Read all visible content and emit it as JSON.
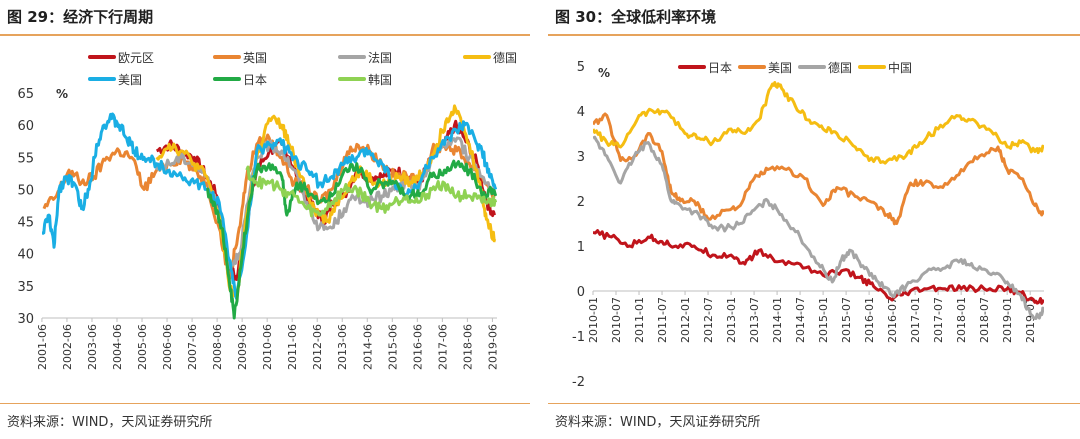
{
  "panels": [
    {
      "title": "图 29：经济下行周期",
      "source": "资料来源：WIND，天风证券研究所"
    },
    {
      "title": "图 30：全球低利率环境",
      "source": "资料来源：WIND，天风证券研究所"
    }
  ],
  "chart_data": [
    {
      "type": "line",
      "unit_label": "%",
      "ylim": [
        30,
        65
      ],
      "yticks": [
        30,
        35,
        40,
        45,
        50,
        55,
        60,
        65
      ],
      "xticks": [
        "2001-06",
        "2002-06",
        "2003-06",
        "2004-06",
        "2005-06",
        "2006-06",
        "2007-06",
        "2008-06",
        "2009-06",
        "2010-06",
        "2011-06",
        "2012-06",
        "2013-06",
        "2014-06",
        "2015-06",
        "2016-06",
        "2017-06",
        "2018-06",
        "2019-06"
      ],
      "xlim": [
        2001.42,
        2019.6
      ],
      "grid": false,
      "legend_position": "top",
      "series": [
        {
          "name": "欧元区",
          "color": "#c0141b",
          "x": [
            2006.0,
            2006.5,
            2007.0,
            2007.5,
            2008.0,
            2008.4,
            2008.9,
            2009.2,
            2009.6,
            2010.0,
            2010.5,
            2011.0,
            2011.3,
            2011.8,
            2012.3,
            2012.7,
            2013.0,
            2013.5,
            2014.0,
            2014.5,
            2015.0,
            2015.5,
            2016.0,
            2016.5,
            2017.0,
            2017.5,
            2017.9,
            2018.3,
            2018.8,
            2019.2,
            2019.5
          ],
          "y": [
            56,
            57,
            56,
            55,
            52,
            49,
            38,
            36,
            45,
            53,
            56,
            57,
            55,
            50,
            47,
            45,
            48,
            49,
            53,
            52,
            52,
            53,
            52,
            51,
            55,
            57,
            60,
            58,
            54,
            48,
            46
          ]
        },
        {
          "name": "英国",
          "color": "#e98532",
          "x": [
            2001.5,
            2002.0,
            2002.5,
            2003.0,
            2003.5,
            2004.0,
            2004.5,
            2005.0,
            2005.5,
            2006.0,
            2006.5,
            2007.0,
            2007.5,
            2008.0,
            2008.5,
            2008.9,
            2009.3,
            2009.6,
            2010.0,
            2010.5,
            2011.0,
            2011.5,
            2012.0,
            2012.5,
            2013.0,
            2013.5,
            2014.0,
            2014.5,
            2015.0,
            2015.5,
            2016.0,
            2016.5,
            2017.0,
            2017.5,
            2018.0,
            2018.5,
            2019.0,
            2019.5
          ],
          "y": [
            47,
            49,
            53,
            51,
            52,
            55,
            56,
            55,
            50,
            53,
            54,
            55,
            53,
            51,
            44,
            36,
            44,
            52,
            57,
            58,
            55,
            51,
            50,
            48,
            50,
            55,
            57,
            56,
            54,
            52,
            52,
            51,
            56,
            57,
            56,
            54,
            52,
            49
          ]
        },
        {
          "name": "法国",
          "color": "#a5a5a5",
          "x": [
            2006.0,
            2006.5,
            2007.0,
            2007.5,
            2008.0,
            2008.5,
            2008.9,
            2009.3,
            2009.7,
            2010.0,
            2010.5,
            2011.0,
            2011.5,
            2012.0,
            2012.5,
            2013.0,
            2013.5,
            2014.0,
            2014.5,
            2015.0,
            2015.5,
            2016.0,
            2016.5,
            2017.0,
            2017.5,
            2018.0,
            2018.5,
            2019.0,
            2019.5
          ],
          "y": [
            53,
            54,
            55,
            54,
            52,
            46,
            38,
            40,
            49,
            55,
            57,
            56,
            53,
            48,
            44,
            44,
            47,
            49,
            48,
            49,
            50,
            51,
            50,
            55,
            57,
            58,
            55,
            52,
            50
          ]
        },
        {
          "name": "德国",
          "color": "#f5bd12",
          "x": [
            2006.0,
            2006.5,
            2007.0,
            2007.5,
            2008.0,
            2008.5,
            2008.9,
            2009.2,
            2009.6,
            2010.0,
            2010.5,
            2011.0,
            2011.3,
            2011.8,
            2012.3,
            2012.8,
            2013.2,
            2013.7,
            2014.2,
            2014.7,
            2015.2,
            2015.7,
            2016.2,
            2016.7,
            2017.2,
            2017.6,
            2017.9,
            2018.3,
            2018.8,
            2019.1,
            2019.3,
            2019.55
          ],
          "y": [
            55,
            57,
            56,
            54,
            52,
            46,
            35,
            33,
            46,
            55,
            61,
            60,
            57,
            52,
            47,
            45,
            48,
            51,
            53,
            51,
            51,
            52,
            51,
            53,
            57,
            61,
            63,
            59,
            53,
            47,
            44,
            42
          ]
        },
        {
          "name": "美国",
          "color": "#1aaee4",
          "x": [
            2001.42,
            2001.7,
            2001.9,
            2002.1,
            2002.4,
            2002.7,
            2003.0,
            2003.3,
            2003.6,
            2003.9,
            2004.2,
            2004.5,
            2004.8,
            2005.1,
            2005.5,
            2006.0,
            2006.5,
            2007.0,
            2007.5,
            2008.0,
            2008.5,
            2008.9,
            2009.2,
            2009.6,
            2010.0,
            2010.5,
            2011.0,
            2011.5,
            2012.0,
            2012.5,
            2013.0,
            2013.5,
            2014.0,
            2014.5,
            2015.0,
            2015.5,
            2016.0,
            2016.5,
            2017.0,
            2017.5,
            2018.0,
            2018.3,
            2018.7,
            2019.0,
            2019.3,
            2019.55
          ],
          "y": [
            43,
            46,
            41,
            50,
            52,
            51,
            47,
            50,
            57,
            60,
            61,
            60,
            58,
            56,
            55,
            54,
            53,
            52,
            51,
            50,
            48,
            39,
            33,
            43,
            56,
            57,
            57,
            55,
            53,
            51,
            52,
            54,
            55,
            56,
            54,
            51,
            49,
            51,
            55,
            57,
            59,
            60,
            58,
            56,
            52,
            50
          ]
        },
        {
          "name": "日本",
          "color": "#22aa45",
          "x": [
            2008.0,
            2008.3,
            2008.6,
            2008.9,
            2009.1,
            2009.4,
            2009.7,
            2010.0,
            2010.5,
            2011.0,
            2011.2,
            2011.6,
            2012.0,
            2012.5,
            2013.0,
            2013.5,
            2014.0,
            2014.5,
            2015.0,
            2015.5,
            2016.0,
            2016.5,
            2017.0,
            2017.5,
            2018.0,
            2018.5,
            2019.0,
            2019.3,
            2019.55
          ],
          "y": [
            50,
            48,
            44,
            36,
            30,
            39,
            48,
            53,
            54,
            52,
            46,
            51,
            50,
            48,
            49,
            53,
            54,
            50,
            51,
            51,
            49,
            49,
            52,
            53,
            54,
            53,
            49,
            50,
            49
          ]
        },
        {
          "name": "韩国",
          "color": "#8fd253",
          "x": [
            2009.6,
            2010.0,
            2010.5,
            2011.0,
            2011.5,
            2012.0,
            2012.5,
            2013.0,
            2013.5,
            2014.0,
            2014.5,
            2015.0,
            2015.5,
            2016.0,
            2016.5,
            2017.0,
            2017.5,
            2018.0,
            2018.5,
            2019.0,
            2019.3,
            2019.55
          ],
          "y": [
            53,
            51,
            51,
            50,
            49,
            47,
            46,
            48,
            50,
            50,
            48,
            47,
            48,
            49,
            48,
            50,
            51,
            49,
            49,
            48,
            48,
            48
          ]
        }
      ]
    },
    {
      "type": "line",
      "unit_label": "%",
      "ylim": [
        -2,
        5
      ],
      "yticks": [
        -2,
        -1,
        0,
        1,
        2,
        3,
        4,
        5
      ],
      "xticks": [
        "2010-01",
        "2010-07",
        "2011-01",
        "2011-07",
        "2012-01",
        "2012-07",
        "2013-01",
        "2013-07",
        "2014-01",
        "2014-07",
        "2015-01",
        "2015-07",
        "2016-01",
        "2016-07",
        "2017-01",
        "2017-07",
        "2018-01",
        "2018-07",
        "2019-01",
        "2019-07"
      ],
      "xlim": [
        2010.0,
        2019.8
      ],
      "grid": false,
      "legend_position": "top",
      "series": [
        {
          "name": "日本",
          "color": "#c0141b",
          "x": [
            2010.0,
            2010.4,
            2010.8,
            2011.2,
            2011.5,
            2011.8,
            2012.2,
            2012.6,
            2013.0,
            2013.3,
            2013.6,
            2014.0,
            2014.5,
            2015.0,
            2015.4,
            2015.8,
            2016.1,
            2016.5,
            2016.8,
            2017.2,
            2017.6,
            2018.0,
            2018.5,
            2019.0,
            2019.3,
            2019.6,
            2019.8
          ],
          "y": [
            1.3,
            1.2,
            1.0,
            1.2,
            1.1,
            1.0,
            1.0,
            0.8,
            0.8,
            0.6,
            0.9,
            0.65,
            0.6,
            0.35,
            0.45,
            0.3,
            0.1,
            -0.2,
            -0.05,
            0.05,
            0.05,
            0.05,
            0.05,
            0.05,
            -0.05,
            -0.25,
            -0.2
          ]
        },
        {
          "name": "美国",
          "color": "#e98532",
          "x": [
            2010.0,
            2010.3,
            2010.6,
            2010.9,
            2011.2,
            2011.5,
            2011.7,
            2011.9,
            2012.2,
            2012.5,
            2012.9,
            2013.2,
            2013.5,
            2013.8,
            2014.2,
            2014.6,
            2015.0,
            2015.3,
            2015.7,
            2016.0,
            2016.4,
            2016.6,
            2016.9,
            2017.2,
            2017.6,
            2018.0,
            2018.4,
            2018.8,
            2019.0,
            2019.3,
            2019.6,
            2019.8
          ],
          "y": [
            3.7,
            3.9,
            2.9,
            3.0,
            3.5,
            3.1,
            2.2,
            2.0,
            2.0,
            1.6,
            1.8,
            1.9,
            2.5,
            2.7,
            2.7,
            2.5,
            1.9,
            2.3,
            2.1,
            2.0,
            1.7,
            1.5,
            2.4,
            2.4,
            2.3,
            2.7,
            3.0,
            3.2,
            2.7,
            2.5,
            1.9,
            1.7
          ]
        },
        {
          "name": "德国",
          "color": "#a5a5a5",
          "x": [
            2010.0,
            2010.3,
            2010.6,
            2010.9,
            2011.2,
            2011.5,
            2011.7,
            2011.9,
            2012.3,
            2012.6,
            2012.9,
            2013.2,
            2013.5,
            2013.8,
            2014.1,
            2014.5,
            2014.9,
            2015.2,
            2015.4,
            2015.6,
            2015.9,
            2016.2,
            2016.5,
            2016.8,
            2017.2,
            2017.6,
            2018.0,
            2018.3,
            2018.7,
            2019.0,
            2019.3,
            2019.5,
            2019.7,
            2019.8
          ],
          "y": [
            3.4,
            3.0,
            2.4,
            3.0,
            3.3,
            2.8,
            2.0,
            1.9,
            1.7,
            1.4,
            1.4,
            1.5,
            1.8,
            2.0,
            1.7,
            1.2,
            0.6,
            0.2,
            0.7,
            0.9,
            0.5,
            0.2,
            -0.1,
            0.1,
            0.4,
            0.5,
            0.7,
            0.5,
            0.4,
            0.2,
            -0.1,
            -0.5,
            -0.6,
            -0.4
          ]
        },
        {
          "name": "中国",
          "color": "#f5bd12",
          "x": [
            2010.0,
            2010.3,
            2010.6,
            2011.0,
            2011.3,
            2011.6,
            2012.0,
            2012.3,
            2012.6,
            2013.0,
            2013.3,
            2013.6,
            2013.9,
            2014.1,
            2014.4,
            2014.7,
            2015.0,
            2015.3,
            2015.7,
            2016.0,
            2016.4,
            2016.8,
            2017.1,
            2017.5,
            2017.9,
            2018.2,
            2018.6,
            2019.0,
            2019.3,
            2019.6,
            2019.8
          ],
          "y": [
            3.6,
            3.3,
            3.2,
            3.9,
            4.0,
            4.0,
            3.5,
            3.4,
            3.3,
            3.6,
            3.5,
            3.8,
            4.6,
            4.5,
            4.1,
            3.8,
            3.6,
            3.5,
            3.2,
            2.9,
            2.9,
            3.0,
            3.3,
            3.6,
            3.9,
            3.8,
            3.6,
            3.2,
            3.3,
            3.1,
            3.2
          ]
        }
      ]
    }
  ]
}
